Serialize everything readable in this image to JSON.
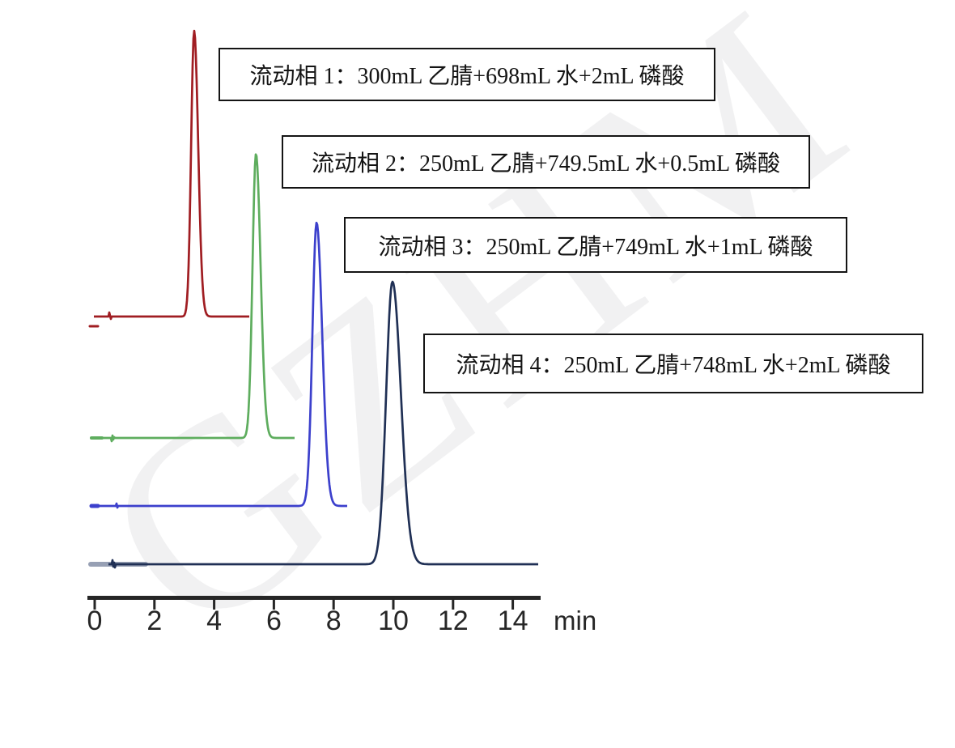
{
  "watermark": "GZHM",
  "axis": {
    "unit_label": "min",
    "tick_labels": [
      "0",
      "2",
      "4",
      "6",
      "8",
      "10",
      "12",
      "14"
    ]
  },
  "chart_data": {
    "type": "line",
    "title": "",
    "xlabel": "min",
    "ylabel": "",
    "x_axis": {
      "ticks": [
        0,
        2,
        4,
        6,
        8,
        10,
        12,
        14
      ],
      "range": [
        0,
        14.9
      ],
      "unit": "min"
    },
    "grid": false,
    "legend_position": "none",
    "layout_hint": "four stacked chromatogram traces with offset baselines, equal peak heights",
    "series": [
      {
        "name": "流动相 1",
        "label": "流动相 1：300mL 乙腈+698mL 水+2mL 磷酸",
        "color": "#a01d22",
        "retention_time_min": 3.33,
        "peak_sigma_min": 0.1,
        "height_rel": 1.0
      },
      {
        "name": "流动相 2",
        "label": "流动相 2：250mL 乙腈+749.5mL 水+0.5mL 磷酸",
        "color": "#5ead5e",
        "retention_time_min": 5.4,
        "peak_sigma_min": 0.115,
        "height_rel": 1.0
      },
      {
        "name": "流动相 3",
        "label": "流动相 3：250mL 乙腈+749mL 水+1mL 磷酸",
        "color": "#3c40cc",
        "retention_time_min": 7.43,
        "peak_sigma_min": 0.14,
        "height_rel": 1.0
      },
      {
        "name": "流动相 4",
        "label": "流动相 4：250mL 乙腈+748mL 水+2mL 磷酸",
        "color": "#203055",
        "retention_time_min": 9.97,
        "peak_sigma_min": 0.21,
        "height_rel": 1.0
      }
    ]
  }
}
